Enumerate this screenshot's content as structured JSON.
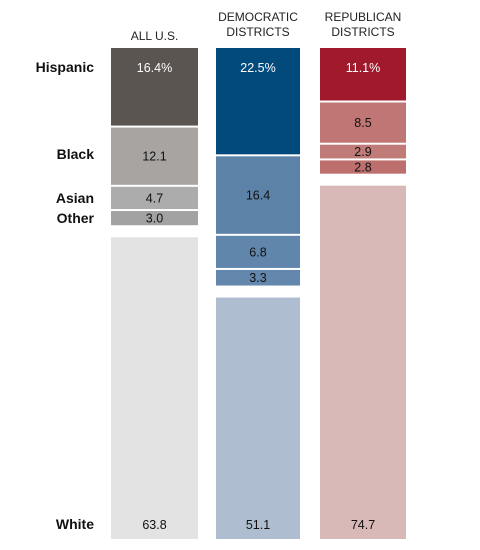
{
  "chart_data": {
    "type": "bar",
    "stacked": true,
    "orientation": "vertical",
    "grid": false,
    "legend": "none",
    "categories": [
      "Hispanic",
      "Black",
      "Asian",
      "Other",
      "White"
    ],
    "series": [
      {
        "name": "ALL U.S.",
        "values": [
          16.4,
          12.1,
          4.7,
          3.0,
          63.8
        ],
        "labels": [
          "16.4%",
          "12.1",
          "4.7",
          "3.0",
          "63.8"
        ],
        "colors": [
          "#5b5552",
          "#a8a4a2",
          "#acacac",
          "#a2a2a2",
          "#e3e3e3"
        ],
        "text_colors": [
          "#ffffff",
          "#111111",
          "#111111",
          "#111111",
          "#111111"
        ]
      },
      {
        "name": "DEMOCRATIC DISTRICTS",
        "values": [
          22.5,
          16.4,
          6.8,
          3.3,
          51.1
        ],
        "labels": [
          "22.5%",
          "16.4",
          "6.8",
          "3.3",
          "51.1"
        ],
        "colors": [
          "#034a7c",
          "#5d82a7",
          "#6086ab",
          "#6488ad",
          "#aebdd0"
        ],
        "text_colors": [
          "#ffffff",
          "#111111",
          "#111111",
          "#111111",
          "#111111"
        ]
      },
      {
        "name": "REPUBLICAN DISTRICTS",
        "values": [
          11.1,
          8.5,
          2.9,
          2.8,
          74.7
        ],
        "labels": [
          "11.1%",
          "8.5",
          "2.9",
          "2.8",
          "74.7"
        ],
        "colors": [
          "#a01a2c",
          "#bf7674",
          "#c07a78",
          "#bc6f6d",
          "#d9b9b8"
        ],
        "text_colors": [
          "#ffffff",
          "#111111",
          "#111111",
          "#111111",
          "#111111"
        ]
      }
    ],
    "column_titles": [
      [
        "ALL U.S."
      ],
      [
        "DEMOCRATIC",
        "DISTRICTS"
      ],
      [
        "REPUBLICAN",
        "DISTRICTS"
      ]
    ]
  }
}
